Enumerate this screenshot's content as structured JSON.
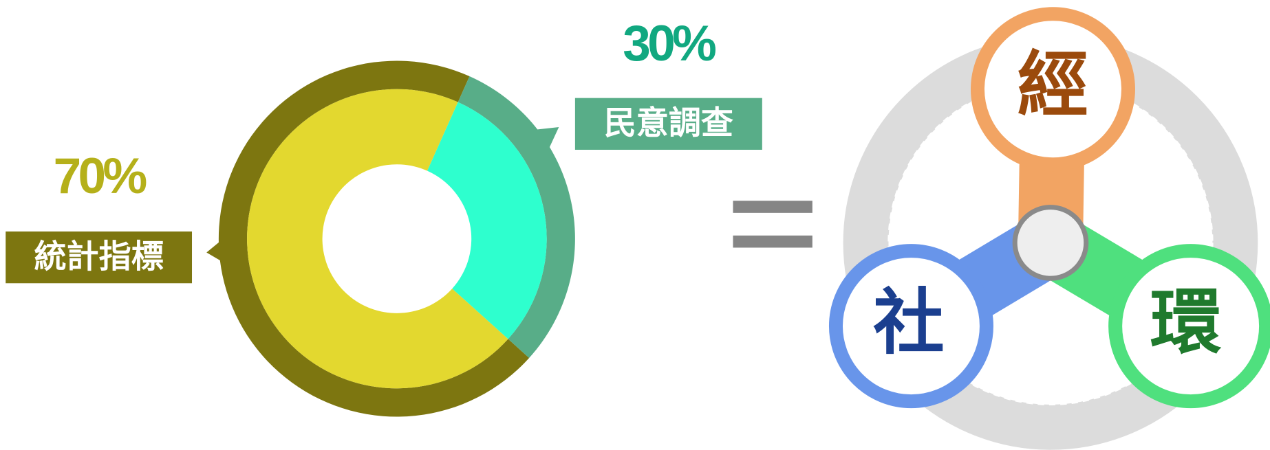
{
  "chart_data": {
    "type": "pie",
    "categories": [
      "統計指標",
      "民意調查"
    ],
    "values": [
      70,
      30
    ],
    "value_labels": [
      "70%",
      "30%"
    ],
    "colors": [
      "#e3d82f",
      "#2effce"
    ],
    "ring_colors": [
      "#7d7610",
      "#58ad88"
    ],
    "label_colors": [
      "#b5b01a",
      "#11a880"
    ]
  },
  "diagram": {
    "nodes": [
      {
        "label": "經"
      },
      {
        "label": "社"
      },
      {
        "label": "環"
      }
    ]
  }
}
